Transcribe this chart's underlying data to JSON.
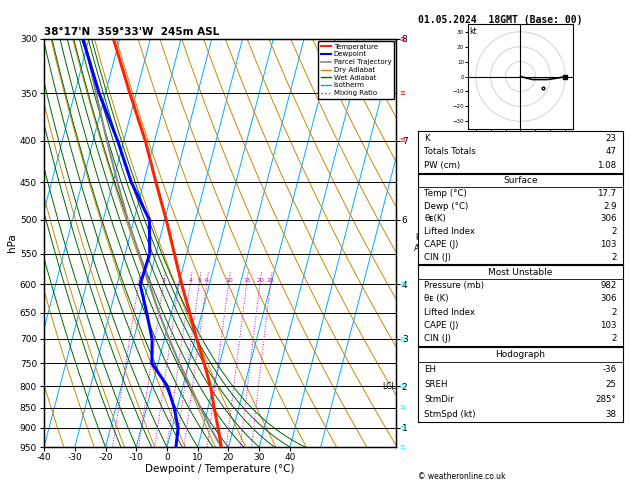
{
  "title_left": "38°17'N  359°33'W  245m ASL",
  "title_right": "01.05.2024  18GMT (Base: 00)",
  "xlabel": "Dewpoint / Temperature (°C)",
  "ylabel_left": "hPa",
  "pressure_ticks": [
    300,
    350,
    400,
    450,
    500,
    550,
    600,
    650,
    700,
    750,
    800,
    850,
    900,
    950
  ],
  "km_ticks": {
    "300": "8",
    "400": "7",
    "500": "6",
    "600": "4",
    "700": "3",
    "800": "2",
    "900": "1",
    "950": "1"
  },
  "temp_profile": {
    "pressure": [
      950,
      900,
      850,
      800,
      750,
      700,
      650,
      600,
      550,
      500,
      450,
      400,
      350,
      300
    ],
    "temp": [
      17.7,
      15.0,
      12.0,
      9.0,
      5.0,
      0.5,
      -4.0,
      -9.0,
      -14.0,
      -19.5,
      -26.0,
      -33.0,
      -42.0,
      -52.0
    ]
  },
  "dewp_profile": {
    "pressure": [
      950,
      900,
      850,
      800,
      750,
      700,
      650,
      600,
      550,
      500,
      450,
      400,
      350,
      300
    ],
    "temp": [
      2.9,
      2.0,
      -1.0,
      -5.0,
      -12.0,
      -14.0,
      -18.0,
      -22.5,
      -22.0,
      -25.0,
      -34.0,
      -42.0,
      -52.0,
      -62.0
    ]
  },
  "parcel_profile": {
    "pressure": [
      950,
      900,
      850,
      800,
      750,
      700,
      650,
      600,
      550,
      500,
      450,
      400,
      350,
      300
    ],
    "temp": [
      17.7,
      12.5,
      7.5,
      2.5,
      -3.0,
      -8.5,
      -14.0,
      -19.5,
      -25.5,
      -32.0,
      -38.5,
      -45.5,
      -53.0,
      -61.5
    ]
  },
  "temp_color": "#ff2200",
  "dewp_color": "#0000ff",
  "parcel_color": "#888888",
  "dry_adiabat_color": "#cc8800",
  "wet_adiabat_color": "#006600",
  "isotherm_color": "#00aaff",
  "mixing_ratio_color": "#cc00cc",
  "lcl_pressure": 800,
  "xmin": -40,
  "xmax": 40,
  "pmin": 300,
  "pmax": 950,
  "skew_degC_per_logp": 30,
  "mixing_ratios": [
    1,
    2,
    3,
    4,
    5,
    6,
    10,
    15,
    20,
    25
  ],
  "indices_K": 23,
  "indices_TT": 47,
  "indices_PW": 1.08,
  "surf_temp": 17.7,
  "surf_dewp": 2.9,
  "surf_theta_e": 306,
  "surf_li": 2,
  "surf_cape": 103,
  "surf_cin": 2,
  "mu_pres": 982,
  "mu_theta_e": 306,
  "mu_li": 2,
  "mu_cape": 103,
  "mu_cin": 2,
  "hodo_eh": -36,
  "hodo_sreh": 25,
  "hodo_stmdir": "285°",
  "hodo_stmspd": 38,
  "copyright": "© weatheronline.co.uk"
}
